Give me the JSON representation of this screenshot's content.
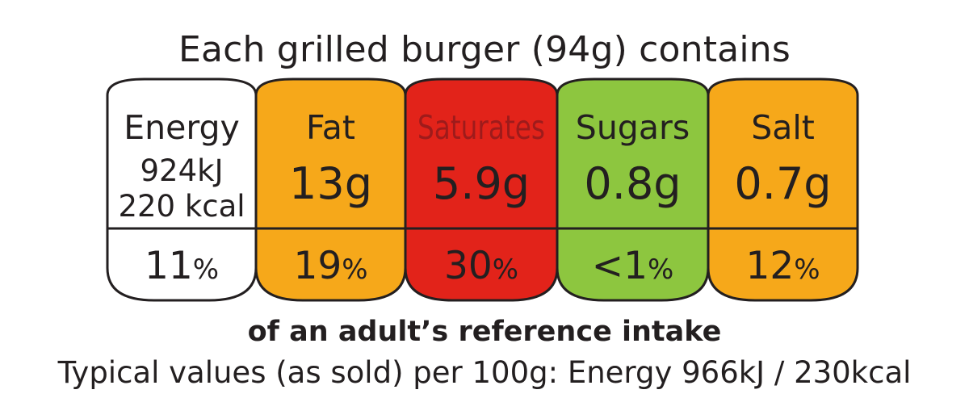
{
  "heading": "Each grilled burger (94g) contains",
  "colors": {
    "white": "#ffffff",
    "amber": "#f6a81a",
    "red": "#e2231a",
    "green": "#8dc63f",
    "outline": "#231f20",
    "saturates_label": "#9e1b1b"
  },
  "segments": [
    {
      "name": "Energy",
      "lines": [
        "924kJ",
        "220 kcal"
      ],
      "percent": "11",
      "percent_sign": "%",
      "fill": "white"
    },
    {
      "name": "Fat",
      "value": "13g",
      "percent": "19",
      "percent_sign": "%",
      "fill": "amber"
    },
    {
      "name": "Saturates",
      "value": "5.9g",
      "percent": "30",
      "percent_sign": "%",
      "fill": "red"
    },
    {
      "name": "Sugars",
      "value": "0.8g",
      "percent": "<1",
      "percent_sign": "%",
      "fill": "green"
    },
    {
      "name": "Salt",
      "value": "0.7g",
      "percent": "12",
      "percent_sign": "%",
      "fill": "amber"
    }
  ],
  "reference_note": "of an adult’s reference intake",
  "typical_values": "Typical values (as sold) per 100g: Energy 966kJ / 230kcal"
}
